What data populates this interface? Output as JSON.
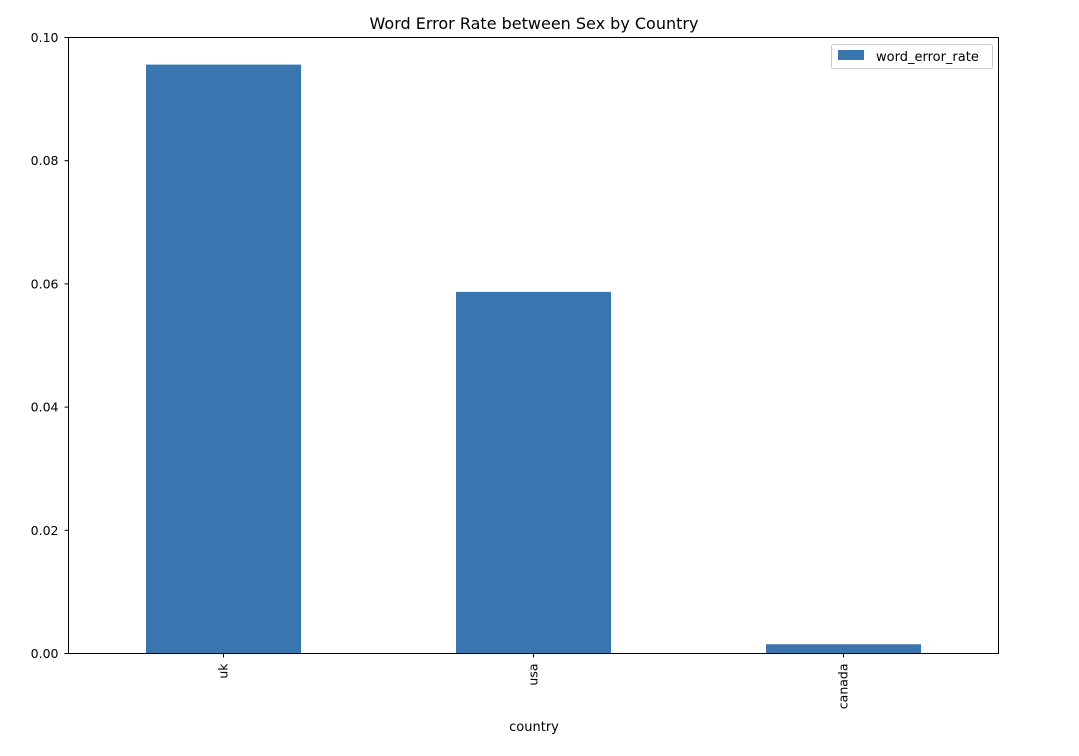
{
  "chart_data": {
    "type": "bar",
    "title": "Word Error Rate between Sex by Country",
    "xlabel": "country",
    "ylabel": "",
    "categories": [
      "uk",
      "usa",
      "canada"
    ],
    "series": [
      {
        "name": "word_error_rate",
        "values": [
          0.0956,
          0.0587,
          0.0015
        ],
        "color": "#3a75af"
      }
    ],
    "ylim": [
      0,
      0.1
    ],
    "yticks": [
      0.0,
      0.02,
      0.04,
      0.06,
      0.08,
      0.1
    ],
    "ytick_labels": [
      "0.00",
      "0.02",
      "0.04",
      "0.06",
      "0.08",
      "0.10"
    ],
    "grid": false,
    "legend_position": "top-right"
  }
}
